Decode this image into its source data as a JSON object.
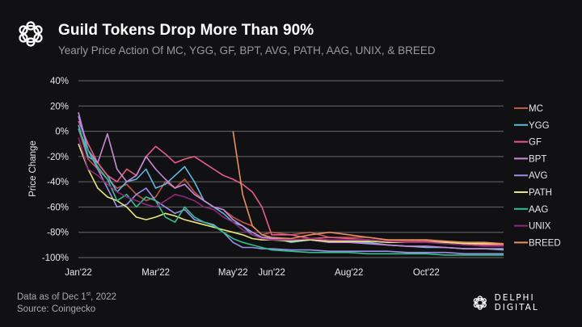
{
  "header": {
    "logo_icon": "delphi-knot-icon",
    "title": "Guild Tokens Drop More Than 90%",
    "subtitle": "Yearly Price Action Of MC, YGG, GF, BPT, AVG, PATH, AAG, UNIX, & BREED"
  },
  "footer": {
    "data_as_of": "Data as of Dec 1",
    "data_as_of_sup": "st",
    "data_as_of_year": ", 2022",
    "source": "Source: Coingecko",
    "brand": "DELPHI DIGITAL"
  },
  "chart_data": {
    "type": "line",
    "title": "Guild Tokens Drop More Than 90%",
    "subtitle": "Yearly Price Action Of MC, YGG, GF, BPT, AVG, PATH, AAG, UNIX, & BREED",
    "xlabel": "",
    "ylabel": "Price Change",
    "ylim": [
      -100,
      40
    ],
    "yticks": [
      40,
      20,
      0,
      -20,
      -40,
      -60,
      -80,
      -100
    ],
    "ytick_labels": [
      "40%",
      "20%",
      "0%",
      "-20%",
      "-40%",
      "-60%",
      "-80%",
      "-100%"
    ],
    "xlim": [
      0,
      11
    ],
    "xticks": [
      0,
      2,
      4,
      5,
      7,
      9
    ],
    "xtick_labels": [
      "Jan'22",
      "Mar'22",
      "May'22",
      "Jun'22",
      "Aug'22",
      "Oct'22"
    ],
    "grid": true,
    "legend": "right",
    "x": [
      0,
      0.25,
      0.5,
      0.75,
      1,
      1.25,
      1.5,
      1.75,
      2,
      2.25,
      2.5,
      2.75,
      3,
      3.25,
      3.5,
      3.75,
      4,
      4.25,
      4.5,
      4.75,
      5,
      5.5,
      6,
      6.5,
      7,
      7.5,
      8,
      8.5,
      9,
      9.5,
      10,
      10.5,
      11
    ],
    "series": [
      {
        "name": "MC",
        "color": "#c0574b",
        "values": [
          2,
          -22,
          -30,
          -38,
          -45,
          -42,
          -50,
          -55,
          -52,
          -40,
          -45,
          -38,
          -48,
          -55,
          -60,
          -62,
          -68,
          -72,
          -75,
          -82,
          -80,
          -82,
          -80,
          -84,
          -84,
          -84,
          -86,
          -87,
          -86,
          -88,
          -88,
          -90,
          -90
        ]
      },
      {
        "name": "YGG",
        "color": "#5eb8e0",
        "values": [
          5,
          -20,
          -25,
          -35,
          -48,
          -40,
          -38,
          -30,
          -45,
          -42,
          -35,
          -28,
          -40,
          -55,
          -60,
          -65,
          -72,
          -75,
          -82,
          -84,
          -84,
          -88,
          -86,
          -88,
          -88,
          -88,
          -90,
          -91,
          -92,
          -92,
          -93,
          -93,
          -94
        ]
      },
      {
        "name": "GF",
        "color": "#e85c87",
        "values": [
          8,
          -10,
          -25,
          -35,
          -40,
          -30,
          -35,
          -20,
          -12,
          -18,
          -25,
          -22,
          -20,
          -25,
          -30,
          -35,
          -38,
          -42,
          -48,
          -60,
          -82,
          -82,
          -85,
          -84,
          -85,
          -86,
          -87,
          -88,
          -87,
          -88,
          -89,
          -90,
          -90
        ]
      },
      {
        "name": "BPT",
        "color": "#c98ad8",
        "values": [
          15,
          -15,
          -25,
          -2,
          -30,
          -40,
          -35,
          -20,
          -30,
          -38,
          -45,
          -42,
          -50,
          -55,
          -60,
          -62,
          -70,
          -75,
          -80,
          -84,
          -85,
          -86,
          -86,
          -88,
          -88,
          -89,
          -90,
          -91,
          -91,
          -92,
          -93,
          -93,
          -93
        ]
      },
      {
        "name": "AVG",
        "color": "#9c8ee8",
        "values": [
          12,
          -15,
          -30,
          -45,
          -60,
          -58,
          -50,
          -45,
          -55,
          -60,
          -65,
          -62,
          -70,
          -72,
          -74,
          -80,
          -88,
          -92,
          -92,
          -93,
          -93,
          -94,
          -94,
          -95,
          -95,
          -95,
          -95,
          -96,
          -96,
          -96,
          -97,
          -97,
          -97
        ]
      },
      {
        "name": "PATH",
        "color": "#e8e67a",
        "values": [
          -10,
          -30,
          -45,
          -52,
          -55,
          -60,
          -68,
          -70,
          -68,
          -65,
          -67,
          -70,
          -72,
          -74,
          -76,
          -78,
          -80,
          -82,
          -85,
          -86,
          -86,
          -87,
          -86,
          -87,
          -87,
          -87,
          -88,
          -88,
          -88,
          -88,
          -89,
          -89,
          -89
        ]
      },
      {
        "name": "AAG",
        "color": "#2fc28f",
        "values": [
          2,
          -15,
          -28,
          -38,
          -55,
          -50,
          -60,
          -52,
          -55,
          -68,
          -72,
          -60,
          -68,
          -72,
          -75,
          -80,
          -85,
          -88,
          -90,
          -92,
          -94,
          -95,
          -96,
          -96,
          -96,
          -97,
          -97,
          -97,
          -97,
          -98,
          -98,
          -98,
          -98
        ]
      },
      {
        "name": "UNIX",
        "color": "#8a2a7a",
        "values": [
          -5,
          -30,
          -35,
          -42,
          -48,
          -52,
          -55,
          -58,
          -60,
          -55,
          -50,
          -52,
          -55,
          -60,
          -62,
          -68,
          -72,
          -78,
          -82,
          -85,
          -86,
          -86,
          -85,
          -86,
          -86,
          -86,
          -87,
          -88,
          -88,
          -89,
          -90,
          -91,
          -91
        ]
      },
      {
        "name": "BREED",
        "color": "#e89060",
        "values": [
          null,
          null,
          null,
          null,
          null,
          null,
          null,
          null,
          null,
          null,
          null,
          null,
          null,
          null,
          null,
          null,
          0,
          -50,
          -75,
          -82,
          -84,
          -85,
          -82,
          -80,
          -82,
          -84,
          -86,
          -86,
          -86,
          -87,
          -88,
          -88,
          -89
        ]
      }
    ]
  }
}
